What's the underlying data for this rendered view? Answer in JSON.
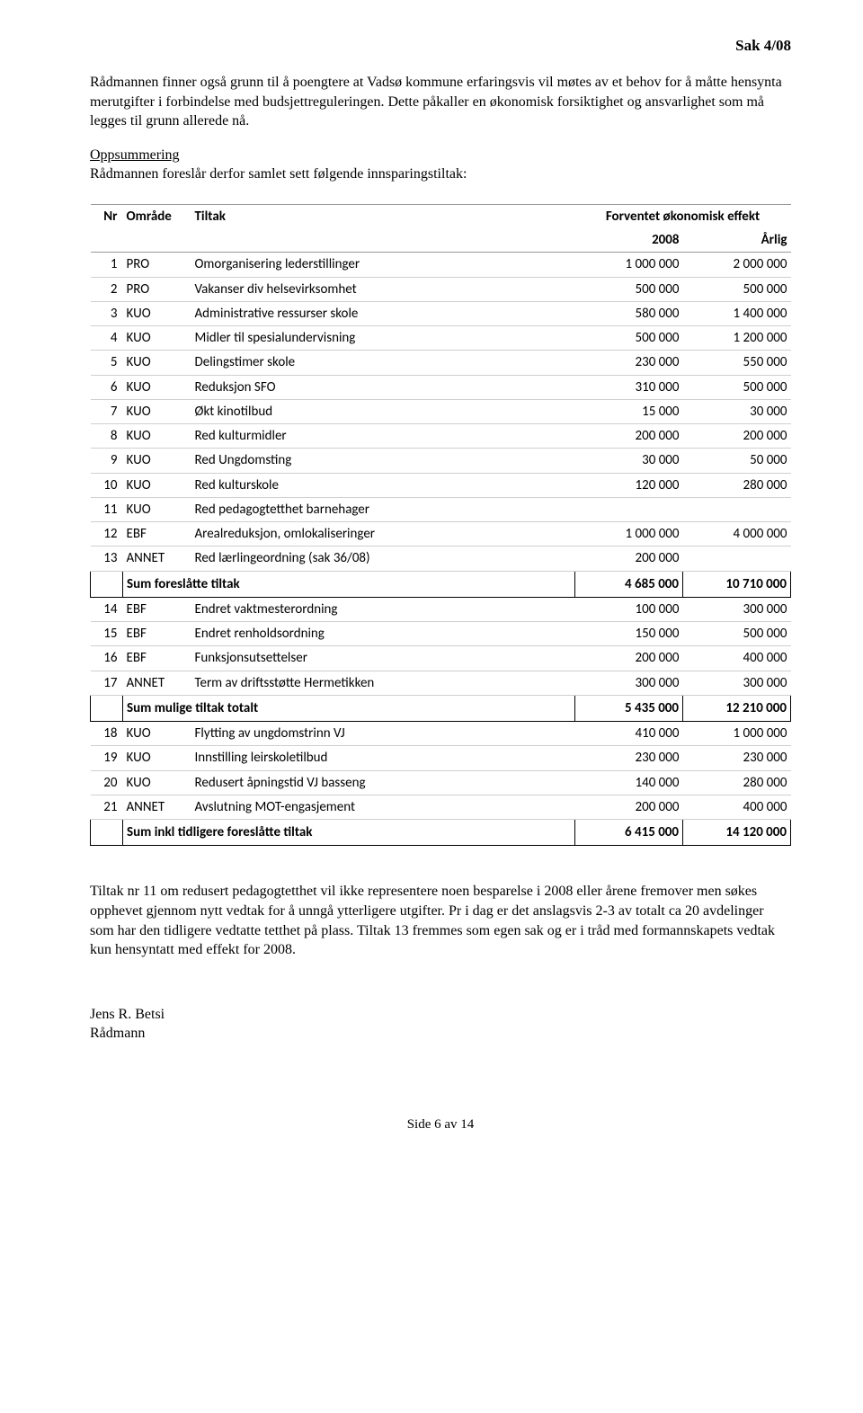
{
  "header": {
    "case_no": "Sak 4/08"
  },
  "para1": "Rådmannen finner også grunn til å poengtere at Vadsø kommune erfaringsvis vil møtes av et behov for å måtte hensynta merutgifter i forbindelse med budsjettreguleringen. Dette påkaller en økonomisk forsiktighet og ansvarlighet som må legges til grunn allerede nå.",
  "summary_heading": "Oppsummering",
  "summary_line": "Rådmannen foreslår derfor samlet sett følgende innsparingstiltak:",
  "table": {
    "headers": {
      "nr": "Nr",
      "omrade": "Område",
      "tiltak": "Tiltak",
      "effekt": "Forventet økonomisk effekt",
      "y2008": "2008",
      "aarlig": "Årlig"
    },
    "rows": [
      {
        "nr": "1",
        "omr": "PRO",
        "tiltak": "Omorganisering lederstillinger",
        "y2008": "1 000 000",
        "aarlig": "2 000 000"
      },
      {
        "nr": "2",
        "omr": "PRO",
        "tiltak": "Vakanser div helsevirksomhet",
        "y2008": "500 000",
        "aarlig": "500 000"
      },
      {
        "nr": "3",
        "omr": "KUO",
        "tiltak": "Administrative ressurser skole",
        "y2008": "580 000",
        "aarlig": "1 400 000"
      },
      {
        "nr": "4",
        "omr": "KUO",
        "tiltak": "Midler til spesialundervisning",
        "y2008": "500 000",
        "aarlig": "1 200 000"
      },
      {
        "nr": "5",
        "omr": "KUO",
        "tiltak": "Delingstimer skole",
        "y2008": "230 000",
        "aarlig": "550 000"
      },
      {
        "nr": "6",
        "omr": "KUO",
        "tiltak": "Reduksjon SFO",
        "y2008": "310 000",
        "aarlig": "500 000"
      },
      {
        "nr": "7",
        "omr": "KUO",
        "tiltak": "Økt kinotilbud",
        "y2008": "15 000",
        "aarlig": "30 000"
      },
      {
        "nr": "8",
        "omr": "KUO",
        "tiltak": "Red kulturmidler",
        "y2008": "200 000",
        "aarlig": "200 000"
      },
      {
        "nr": "9",
        "omr": "KUO",
        "tiltak": "Red Ungdomsting",
        "y2008": "30 000",
        "aarlig": "50 000"
      },
      {
        "nr": "10",
        "omr": "KUO",
        "tiltak": "Red kulturskole",
        "y2008": "120 000",
        "aarlig": "280 000"
      },
      {
        "nr": "11",
        "omr": "KUO",
        "tiltak": "Red pedagogtetthet barnehager",
        "y2008": "",
        "aarlig": ""
      },
      {
        "nr": "12",
        "omr": "EBF",
        "tiltak": "Arealreduksjon, omlokaliseringer",
        "y2008": "1 000 000",
        "aarlig": "4 000 000"
      },
      {
        "nr": "13",
        "omr": "ANNET",
        "tiltak": "Red lærlingeordning (sak 36/08)",
        "y2008": "200 000",
        "aarlig": ""
      }
    ],
    "sum1": {
      "label": "Sum foreslåtte tiltak",
      "y2008": "4 685 000",
      "aarlig": "10 710 000"
    },
    "rows2": [
      {
        "nr": "14",
        "omr": "EBF",
        "tiltak": "Endret vaktmesterordning",
        "y2008": "100 000",
        "aarlig": "300 000"
      },
      {
        "nr": "15",
        "omr": "EBF",
        "tiltak": "Endret renholdsordning",
        "y2008": "150 000",
        "aarlig": "500 000"
      },
      {
        "nr": "16",
        "omr": "EBF",
        "tiltak": "Funksjonsutsettelser",
        "y2008": "200 000",
        "aarlig": "400 000"
      },
      {
        "nr": "17",
        "omr": "ANNET",
        "tiltak": "Term av driftsstøtte Hermetikken",
        "y2008": "300 000",
        "aarlig": "300 000"
      }
    ],
    "sum2": {
      "label": "Sum mulige tiltak totalt",
      "y2008": "5 435 000",
      "aarlig": "12 210 000"
    },
    "rows3": [
      {
        "nr": "18",
        "omr": "KUO",
        "tiltak": "Flytting av ungdomstrinn VJ",
        "y2008": "410 000",
        "aarlig": "1 000 000"
      },
      {
        "nr": "19",
        "omr": "KUO",
        "tiltak": "Innstilling leirskoletilbud",
        "y2008": "230 000",
        "aarlig": "230 000"
      },
      {
        "nr": "20",
        "omr": "KUO",
        "tiltak": "Redusert åpningstid VJ basseng",
        "y2008": "140 000",
        "aarlig": "280 000"
      },
      {
        "nr": "21",
        "omr": "ANNET",
        "tiltak": "Avslutning MOT-engasjement",
        "y2008": "200 000",
        "aarlig": "400 000"
      }
    ],
    "sum3": {
      "label": "Sum inkl tidligere foreslåtte tiltak",
      "y2008": "6 415 000",
      "aarlig": "14 120 000"
    }
  },
  "para2": "Tiltak nr 11 om redusert pedagogtetthet vil ikke representere noen besparelse i 2008 eller årene fremover men søkes opphevet gjennom nytt vedtak for å unngå ytterligere utgifter. Pr i dag er det anslagsvis 2-3 av totalt ca 20 avdelinger som har den tidligere vedtatte tetthet på plass. Tiltak 13 fremmes som egen sak og er i tråd med formannskapets vedtak kun hensyntatt med effekt for 2008.",
  "signature": {
    "name": "Jens R. Betsi",
    "title": "Rådmann"
  },
  "page_num": "Side 6 av 14"
}
